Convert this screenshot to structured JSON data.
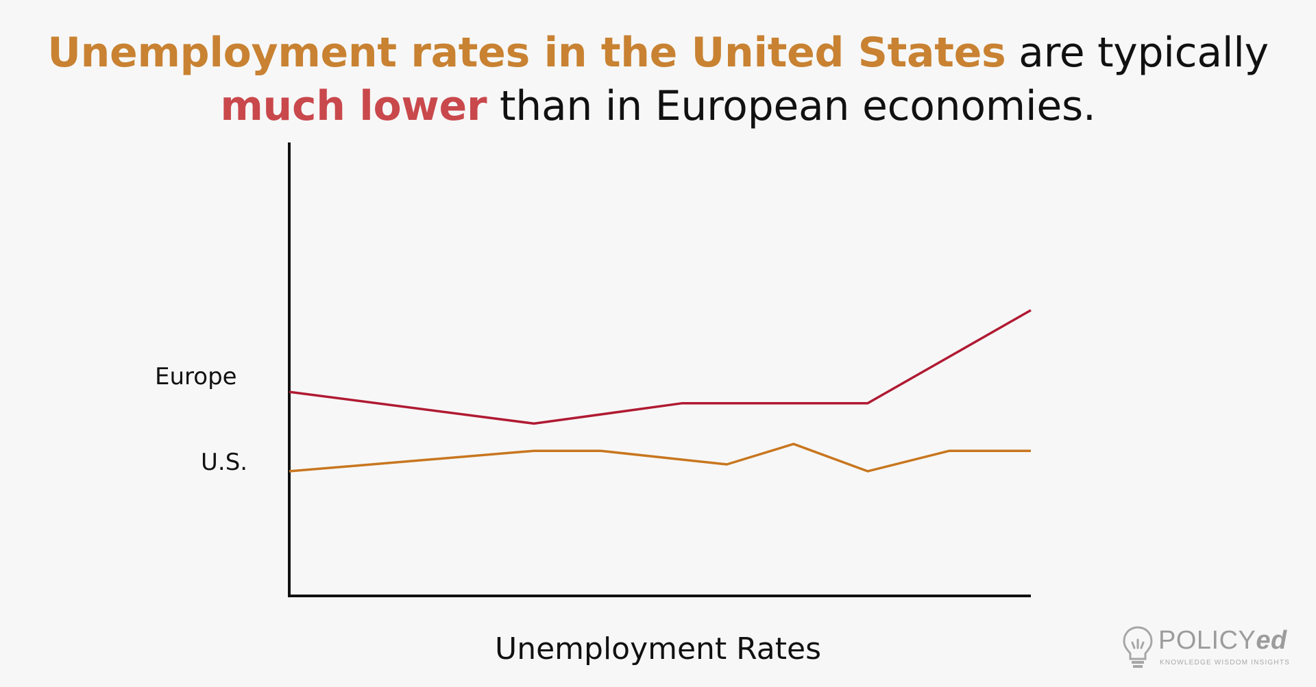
{
  "title": {
    "part1": "Unemployment rates in the United States",
    "part2": " are typically",
    "part3": "much lower",
    "part4": " than in European economies."
  },
  "colors": {
    "title_orange": "#c88232",
    "title_red": "#c9484c",
    "europe_line": "#b01a32",
    "us_line": "#c8761e",
    "axis": "#111111",
    "background": "#f7f7f7"
  },
  "chart_data": {
    "type": "line",
    "title": "",
    "xlabel": "Unemployment Rates",
    "ylabel": "",
    "grid": false,
    "legend": "none",
    "ylim": [
      0,
      10
    ],
    "xlim": [
      0,
      100
    ],
    "series": [
      {
        "name": "Europe",
        "x": [
          0,
          33,
          53,
          78,
          100
        ],
        "values": [
          4.5,
          3.8,
          4.25,
          4.25,
          6.3
        ]
      },
      {
        "name": "U.S.",
        "x": [
          0,
          33,
          42,
          59,
          68,
          78,
          89,
          100
        ],
        "values": [
          2.75,
          3.2,
          3.2,
          2.9,
          3.35,
          2.75,
          3.2,
          3.2
        ]
      }
    ]
  },
  "logo": {
    "word_main": "POLICY",
    "word_suffix": "ed",
    "tagline": "KNOWLEDGE  WISDOM  INSIGHTS",
    "icon": "lightbulb-icon"
  }
}
